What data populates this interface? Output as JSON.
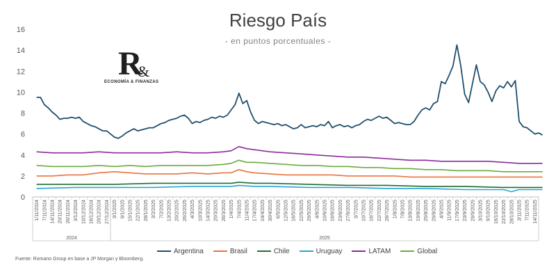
{
  "chart_data": {
    "type": "line",
    "title": "Riesgo País",
    "subtitle": "- en puntos porcentuales -",
    "ylim": [
      0,
      16
    ],
    "y_ticks": [
      "0",
      "2",
      "4",
      "6",
      "8",
      "10",
      "12",
      "14",
      "16"
    ],
    "x_ticks": [
      "1/11/2024",
      "7/11/2024",
      "14/11/2024",
      "20/11/2024",
      "26/11/2024",
      "3/12/2024",
      "10/12/2024",
      "16/12/2024",
      "20/12/2024",
      "27/12/2024",
      "3/1/2025",
      "9/1/2025",
      "15/1/2025",
      "22/1/2025",
      "28/1/2025",
      "3/2/2025",
      "7/2/2025",
      "13/2/2025",
      "20/2/2025",
      "26/2/2025",
      "4/3/2025",
      "10/3/2025",
      "14/3/2025",
      "20/3/2025",
      "26/3/2025",
      "1/4/2025",
      "7/4/2025",
      "11/4/2025",
      "17/4/2025",
      "24/4/2025",
      "30/4/2025",
      "6/5/2025",
      "12/5/2025",
      "16/5/2025",
      "22/5/2025",
      "29/5/2025",
      "4/6/2025",
      "10/6/2025",
      "16/6/2025",
      "23/6/2025",
      "27/6/2025",
      "3/7/2025",
      "10/7/2025",
      "16/7/2025",
      "22/7/2025",
      "28/7/2025",
      "1/8/2025",
      "7/8/2025",
      "13/8/2025",
      "19/8/2025",
      "25/8/2025",
      "29/8/2025",
      "4/9/2025",
      "11/9/2025",
      "17/9/2025",
      "23/9/2025",
      "29/9/2025",
      "3/10/2025",
      "9/10/2025",
      "16/10/2025",
      "22/10/2025",
      "28/10/2025",
      "3/11/2025",
      "7/11/2025",
      "14/11/2025"
    ],
    "year_labels": [
      {
        "label": "2024",
        "start": 0,
        "end": 9
      },
      {
        "label": "2025",
        "start": 10,
        "end": 64
      }
    ],
    "grid": false,
    "legend_position": "bottom",
    "series": [
      {
        "name": "Argentina",
        "color": "#1f4e6e",
        "points": [
          [
            0,
            9.5
          ],
          [
            0.5,
            9.5
          ],
          [
            1,
            8.8
          ],
          [
            1.5,
            8.5
          ],
          [
            2,
            8.1
          ],
          [
            2.5,
            7.8
          ],
          [
            3,
            7.4
          ],
          [
            3.5,
            7.5
          ],
          [
            4,
            7.5
          ],
          [
            4.5,
            7.6
          ],
          [
            5,
            7.5
          ],
          [
            5.5,
            7.6
          ],
          [
            6,
            7.2
          ],
          [
            6.5,
            7.0
          ],
          [
            7,
            6.8
          ],
          [
            7.5,
            6.7
          ],
          [
            8,
            6.5
          ],
          [
            8.5,
            6.3
          ],
          [
            9,
            6.3
          ],
          [
            9.5,
            6.0
          ],
          [
            10,
            5.7
          ],
          [
            10.5,
            5.6
          ],
          [
            11,
            5.8
          ],
          [
            11.5,
            6.1
          ],
          [
            12,
            6.3
          ],
          [
            12.5,
            6.5
          ],
          [
            13,
            6.3
          ],
          [
            13.5,
            6.4
          ],
          [
            14,
            6.5
          ],
          [
            14.5,
            6.6
          ],
          [
            15,
            6.6
          ],
          [
            15.5,
            6.8
          ],
          [
            16,
            7.0
          ],
          [
            16.5,
            7.1
          ],
          [
            17,
            7.3
          ],
          [
            17.5,
            7.4
          ],
          [
            18,
            7.5
          ],
          [
            18.5,
            7.7
          ],
          [
            19,
            7.8
          ],
          [
            19.5,
            7.5
          ],
          [
            20,
            7.0
          ],
          [
            20.5,
            7.2
          ],
          [
            21,
            7.1
          ],
          [
            21.5,
            7.3
          ],
          [
            22,
            7.4
          ],
          [
            22.5,
            7.6
          ],
          [
            23,
            7.5
          ],
          [
            23.5,
            7.7
          ],
          [
            24,
            7.6
          ],
          [
            24.5,
            7.8
          ],
          [
            25,
            8.3
          ],
          [
            25.5,
            8.8
          ],
          [
            26,
            9.9
          ],
          [
            26.5,
            8.9
          ],
          [
            27,
            9.2
          ],
          [
            27.5,
            8.1
          ],
          [
            28,
            7.3
          ],
          [
            28.5,
            7.0
          ],
          [
            29,
            7.2
          ],
          [
            29.5,
            7.1
          ],
          [
            30,
            7.0
          ],
          [
            30.5,
            6.9
          ],
          [
            31,
            7.0
          ],
          [
            31.5,
            6.8
          ],
          [
            32,
            6.9
          ],
          [
            32.5,
            6.7
          ],
          [
            33,
            6.5
          ],
          [
            33.5,
            6.6
          ],
          [
            34,
            6.9
          ],
          [
            34.5,
            6.6
          ],
          [
            35,
            6.7
          ],
          [
            35.5,
            6.8
          ],
          [
            36,
            6.7
          ],
          [
            36.5,
            6.9
          ],
          [
            37,
            6.8
          ],
          [
            37.5,
            7.2
          ],
          [
            38,
            6.6
          ],
          [
            38.5,
            6.8
          ],
          [
            39,
            6.9
          ],
          [
            39.5,
            6.7
          ],
          [
            40,
            6.8
          ],
          [
            40.5,
            6.6
          ],
          [
            41,
            6.8
          ],
          [
            41.5,
            6.9
          ],
          [
            42,
            7.2
          ],
          [
            42.5,
            7.4
          ],
          [
            43,
            7.3
          ],
          [
            43.5,
            7.5
          ],
          [
            44,
            7.7
          ],
          [
            44.5,
            7.5
          ],
          [
            45,
            7.6
          ],
          [
            45.5,
            7.3
          ],
          [
            46,
            7.0
          ],
          [
            46.5,
            7.1
          ],
          [
            47,
            7.0
          ],
          [
            47.5,
            6.9
          ],
          [
            48,
            6.9
          ],
          [
            48.5,
            7.2
          ],
          [
            49,
            7.8
          ],
          [
            49.5,
            8.3
          ],
          [
            50,
            8.5
          ],
          [
            50.5,
            8.3
          ],
          [
            51,
            8.9
          ],
          [
            51.5,
            9.1
          ],
          [
            52,
            11.0
          ],
          [
            52.5,
            10.8
          ],
          [
            53,
            11.6
          ],
          [
            53.5,
            12.5
          ],
          [
            54,
            14.5
          ],
          [
            54.5,
            12.5
          ],
          [
            55,
            9.8
          ],
          [
            55.5,
            9.0
          ],
          [
            56,
            10.8
          ],
          [
            56.5,
            12.6
          ],
          [
            57,
            11.0
          ],
          [
            57.5,
            10.7
          ],
          [
            58,
            10.0
          ],
          [
            58.5,
            9.1
          ],
          [
            59,
            10.1
          ],
          [
            59.5,
            10.6
          ],
          [
            60,
            10.4
          ],
          [
            60.5,
            11.0
          ],
          [
            61,
            10.5
          ],
          [
            61.5,
            11.1
          ],
          [
            62,
            7.2
          ],
          [
            62.5,
            6.7
          ],
          [
            63,
            6.6
          ],
          [
            63.5,
            6.3
          ],
          [
            64,
            6.0
          ],
          [
            64.5,
            6.1
          ],
          [
            65,
            5.9
          ]
        ]
      },
      {
        "name": "Brasil",
        "color": "#e8733a",
        "points": [
          [
            0,
            2.0
          ],
          [
            2,
            2.0
          ],
          [
            4,
            2.1
          ],
          [
            6,
            2.1
          ],
          [
            8,
            2.3
          ],
          [
            10,
            2.4
          ],
          [
            12,
            2.3
          ],
          [
            14,
            2.2
          ],
          [
            16,
            2.2
          ],
          [
            18,
            2.2
          ],
          [
            20,
            2.3
          ],
          [
            22,
            2.2
          ],
          [
            24,
            2.3
          ],
          [
            25,
            2.3
          ],
          [
            26,
            2.6
          ],
          [
            27,
            2.4
          ],
          [
            28,
            2.3
          ],
          [
            30,
            2.2
          ],
          [
            32,
            2.1
          ],
          [
            34,
            2.1
          ],
          [
            36,
            2.1
          ],
          [
            38,
            2.1
          ],
          [
            40,
            2.0
          ],
          [
            42,
            2.0
          ],
          [
            44,
            2.0
          ],
          [
            46,
            2.0
          ],
          [
            48,
            1.9
          ],
          [
            50,
            1.9
          ],
          [
            52,
            1.9
          ],
          [
            54,
            1.9
          ],
          [
            56,
            1.9
          ],
          [
            58,
            1.9
          ],
          [
            60,
            1.9
          ],
          [
            62,
            1.9
          ],
          [
            65,
            1.9
          ]
        ]
      },
      {
        "name": "Chile",
        "color": "#1e6b35",
        "points": [
          [
            0,
            1.2
          ],
          [
            5,
            1.2
          ],
          [
            10,
            1.2
          ],
          [
            15,
            1.3
          ],
          [
            20,
            1.3
          ],
          [
            25,
            1.3
          ],
          [
            26,
            1.4
          ],
          [
            28,
            1.3
          ],
          [
            30,
            1.3
          ],
          [
            35,
            1.2
          ],
          [
            40,
            1.1
          ],
          [
            45,
            1.1
          ],
          [
            50,
            1.0
          ],
          [
            55,
            1.0
          ],
          [
            60,
            0.9
          ],
          [
            65,
            0.9
          ]
        ]
      },
      {
        "name": "Uruguay",
        "color": "#29a3d6",
        "points": [
          [
            0,
            0.8
          ],
          [
            5,
            0.9
          ],
          [
            10,
            0.9
          ],
          [
            15,
            0.9
          ],
          [
            20,
            1.0
          ],
          [
            25,
            1.0
          ],
          [
            26,
            1.1
          ],
          [
            28,
            1.0
          ],
          [
            30,
            1.0
          ],
          [
            35,
            0.9
          ],
          [
            40,
            0.9
          ],
          [
            45,
            0.8
          ],
          [
            50,
            0.8
          ],
          [
            55,
            0.7
          ],
          [
            60,
            0.7
          ],
          [
            61,
            0.5
          ],
          [
            62,
            0.7
          ],
          [
            65,
            0.7
          ]
        ]
      },
      {
        "name": "LATAM",
        "color": "#8b2a9a",
        "points": [
          [
            0,
            4.3
          ],
          [
            2,
            4.2
          ],
          [
            4,
            4.2
          ],
          [
            6,
            4.2
          ],
          [
            8,
            4.3
          ],
          [
            10,
            4.2
          ],
          [
            12,
            4.2
          ],
          [
            14,
            4.2
          ],
          [
            16,
            4.2
          ],
          [
            18,
            4.3
          ],
          [
            20,
            4.2
          ],
          [
            22,
            4.2
          ],
          [
            24,
            4.3
          ],
          [
            25,
            4.4
          ],
          [
            26,
            4.8
          ],
          [
            27,
            4.6
          ],
          [
            28,
            4.5
          ],
          [
            30,
            4.3
          ],
          [
            32,
            4.2
          ],
          [
            34,
            4.1
          ],
          [
            36,
            4.0
          ],
          [
            38,
            3.9
          ],
          [
            40,
            3.8
          ],
          [
            42,
            3.8
          ],
          [
            44,
            3.7
          ],
          [
            46,
            3.6
          ],
          [
            48,
            3.5
          ],
          [
            50,
            3.5
          ],
          [
            52,
            3.4
          ],
          [
            54,
            3.4
          ],
          [
            56,
            3.4
          ],
          [
            58,
            3.4
          ],
          [
            60,
            3.3
          ],
          [
            62,
            3.2
          ],
          [
            65,
            3.2
          ]
        ]
      },
      {
        "name": "Global",
        "color": "#6aab3c",
        "points": [
          [
            0,
            3.0
          ],
          [
            2,
            2.9
          ],
          [
            4,
            2.9
          ],
          [
            6,
            2.9
          ],
          [
            8,
            3.0
          ],
          [
            10,
            2.9
          ],
          [
            12,
            3.0
          ],
          [
            14,
            2.9
          ],
          [
            16,
            3.0
          ],
          [
            18,
            3.0
          ],
          [
            20,
            3.0
          ],
          [
            22,
            3.0
          ],
          [
            24,
            3.1
          ],
          [
            25,
            3.2
          ],
          [
            26,
            3.5
          ],
          [
            27,
            3.3
          ],
          [
            28,
            3.3
          ],
          [
            30,
            3.2
          ],
          [
            32,
            3.1
          ],
          [
            34,
            3.0
          ],
          [
            36,
            3.0
          ],
          [
            38,
            2.9
          ],
          [
            40,
            2.9
          ],
          [
            42,
            2.8
          ],
          [
            44,
            2.8
          ],
          [
            46,
            2.7
          ],
          [
            48,
            2.7
          ],
          [
            50,
            2.6
          ],
          [
            52,
            2.6
          ],
          [
            54,
            2.5
          ],
          [
            56,
            2.5
          ],
          [
            58,
            2.5
          ],
          [
            60,
            2.4
          ],
          [
            62,
            2.4
          ],
          [
            65,
            2.4
          ]
        ]
      }
    ]
  },
  "logo": {
    "mark": "R",
    "amp": "&",
    "caption": "ECONOMÍA & FINANZAS"
  },
  "footer": {
    "source": "Fuente: Romano Group en base a JP Morgan y Bloomberg."
  }
}
